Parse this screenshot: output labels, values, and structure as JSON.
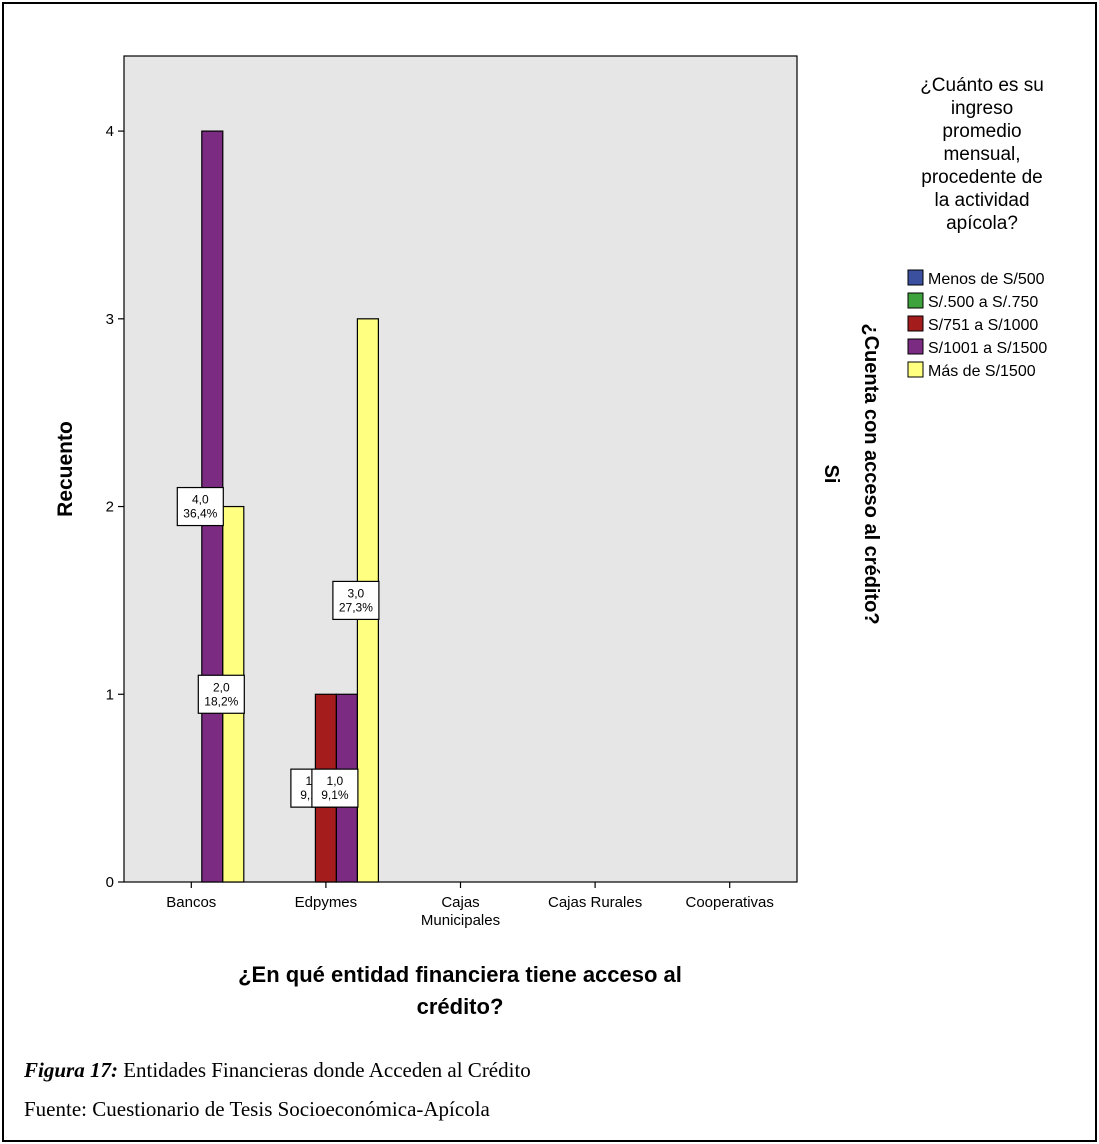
{
  "chart_data": {
    "type": "bar",
    "categories": [
      "Bancos",
      "Edpymes",
      "Cajas Municipales",
      "Cajas Rurales",
      "Cooperativas"
    ],
    "category_label_lines": [
      [
        "Bancos"
      ],
      [
        "Edpymes"
      ],
      [
        "Cajas",
        "Municipales"
      ],
      [
        "Cajas Rurales"
      ],
      [
        "Cooperativas"
      ]
    ],
    "series": [
      {
        "name": "Menos de S/500",
        "color": "#3c50a0",
        "values": [
          0,
          0,
          0,
          0,
          0
        ]
      },
      {
        "name": "S/.500 a S/.750",
        "color": "#3fa33d",
        "values": [
          0,
          0,
          0,
          0,
          0
        ]
      },
      {
        "name": "S/751 a S/1000",
        "color": "#a51c1c",
        "values": [
          0,
          1,
          0,
          0,
          0
        ]
      },
      {
        "name": "S/1001 a S/1500",
        "color": "#7b2c82",
        "values": [
          4,
          1,
          0,
          0,
          0
        ]
      },
      {
        "name": "Más de S/1500",
        "color": "#ffff80",
        "values": [
          2,
          3,
          0,
          0,
          0
        ]
      }
    ],
    "data_labels": [
      {
        "category": 0,
        "series": 3,
        "lines": [
          "4,0",
          "36,4%"
        ]
      },
      {
        "category": 0,
        "series": 4,
        "lines": [
          "2,0",
          "18,2%"
        ]
      },
      {
        "category": 1,
        "series": 2,
        "lines": [
          "1,0",
          "9,1%"
        ]
      },
      {
        "category": 1,
        "series": 3,
        "lines": [
          "1,0",
          "9,1%"
        ]
      },
      {
        "category": 1,
        "series": 4,
        "lines": [
          "3,0",
          "27,3%"
        ]
      }
    ],
    "yticks": [
      0,
      1,
      2,
      3,
      4
    ],
    "ylim": [
      0,
      4.4
    ],
    "ylabel": "Recuento",
    "xlabel_lines": [
      "¿En qué entidad financiera tiene acceso al",
      "crédito?"
    ],
    "panel_label": "Si",
    "panel_title": "¿Cuenta con acceso al crédito?",
    "legend_title_lines": [
      "¿Cuánto es su",
      "ingreso",
      "promedio",
      "mensual,",
      "procedente de",
      "la actividad",
      "apícola?"
    ],
    "legend_position": "right",
    "plot_background": "#e6e6e6",
    "grid": false
  },
  "caption": {
    "figure_label": "Figura 17:",
    "figure_text": " Entidades Financieras donde Acceden al Crédito",
    "source": "Fuente: Cuestionario de Tesis Socioeconómica-Apícola"
  }
}
